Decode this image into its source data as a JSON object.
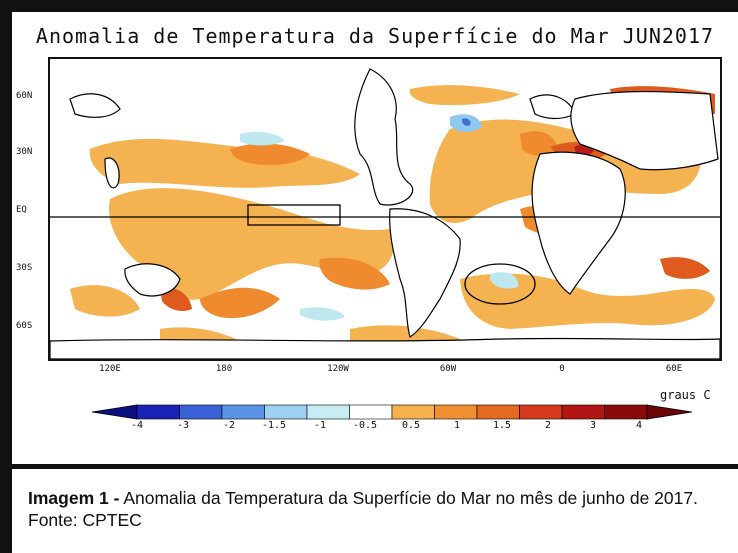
{
  "map": {
    "title": "Anomalia de Temperatura da Superfície do Mar JUN2017",
    "lat_labels": [
      "60N",
      "30N",
      "EQ",
      "30S",
      "60S"
    ],
    "lon_labels": [
      "120E",
      "180",
      "120W",
      "60W",
      "0",
      "60E"
    ],
    "units": "graus C",
    "colors": {
      "warm_light": "#f5b251",
      "warm_mid": "#ef8a2e",
      "warm_strong": "#de5a1e",
      "warm_deep": "#b81e1e",
      "cool_light": "#bfe7ef",
      "cool_mid": "#8fc8f0",
      "cool_strong": "#3d6fd0",
      "land_outline": "#000000"
    }
  },
  "legend": {
    "labels": [
      "-4",
      "-3",
      "-2",
      "-1.5",
      "-1",
      "-0.5",
      "0.5",
      "1",
      "1.5",
      "2",
      "3",
      "4"
    ],
    "colors": [
      "#1b22b8",
      "#3a62d6",
      "#5b94e6",
      "#9dd0f2",
      "#c8ecf3",
      "#ffffff",
      "#f6b14d",
      "#f08f2f",
      "#e46a22",
      "#d63a1c",
      "#b31515",
      "#8a0a0a"
    ]
  },
  "caption": {
    "label": "Imagem 1 -",
    "text": " Anomalia da Temperatura da Superfície do Mar no mês de junho de 2017. Fonte: CPTEC"
  }
}
